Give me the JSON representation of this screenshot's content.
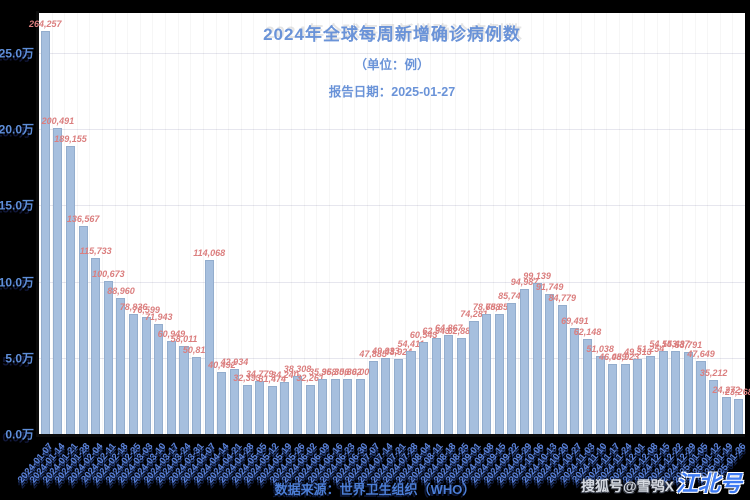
{
  "header": {
    "title": "2024年全球每周新增确诊病例数",
    "subtitle": "（单位：例）",
    "report_date_line": "报告日期：2025-01-27"
  },
  "chart_data": {
    "type": "bar",
    "title": "2024年全球每周新增确诊病例数",
    "subtitle": "（单位：例）",
    "xlabel": "",
    "ylabel": "",
    "ylim": [
      0,
      276250
    ],
    "grid": true,
    "legend_position": "none",
    "yticks": [
      {
        "label": "0.0万",
        "value": 0
      },
      {
        "label": "5.0万",
        "value": 50000
      },
      {
        "label": "10.0万",
        "value": 100000
      },
      {
        "label": "15.0万",
        "value": 150000
      },
      {
        "label": "20.0万",
        "value": 200000
      },
      {
        "label": "25.0万",
        "value": 250000
      }
    ],
    "x": [
      "2024-01-07",
      "2024-01-14",
      "2024-01-21",
      "2024-01-28",
      "2024-02-04",
      "2024-02-11",
      "2024-02-18",
      "2024-02-25",
      "2024-03-03",
      "2024-03-10",
      "2024-03-17",
      "2024-03-24",
      "2024-03-31",
      "2024-04-07",
      "2024-04-14",
      "2024-04-21",
      "2024-04-28",
      "2024-05-05",
      "2024-05-12",
      "2024-05-19",
      "2024-05-26",
      "2024-06-02",
      "2024-06-09",
      "2024-06-16",
      "2024-06-23",
      "2024-06-30",
      "2024-07-07",
      "2024-07-14",
      "2024-07-21",
      "2024-07-28",
      "2024-08-04",
      "2024-08-11",
      "2024-08-18",
      "2024-08-25",
      "2024-09-01",
      "2024-09-08",
      "2024-09-15",
      "2024-09-22",
      "2024-09-29",
      "2024-10-06",
      "2024-10-13",
      "2024-10-20",
      "2024-10-27",
      "2024-11-03",
      "2024-11-10",
      "2024-11-17",
      "2024-11-24",
      "2024-12-01",
      "2024-12-08",
      "2024-12-15",
      "2024-12-22",
      "2024-12-29",
      "2025-01-05",
      "2025-01-12",
      "2025-01-19",
      "2025-01-26"
    ],
    "values": [
      264257,
      200491,
      189155,
      136567,
      115733,
      100673,
      88960,
      78836,
      76599,
      71943,
      60949,
      58011,
      50818,
      114068,
      40492,
      42934,
      32393,
      34779,
      31474,
      34240,
      38308,
      32261,
      35958,
      36306,
      35802,
      36002,
      47885,
      49933,
      48924,
      54411,
      60543,
      62943,
      64867,
      62889,
      74281,
      78658,
      78858,
      85748,
      94987,
      99139,
      91749,
      84779,
      69491,
      62148,
      51038,
      46089,
      45923,
      49313,
      51254,
      54153,
      54487,
      53791,
      47649,
      35212,
      24272,
      23268
    ],
    "bar_color": "#a6bfde",
    "value_label_color": "#db7e7e",
    "tick_label_color": "#5e8ed8",
    "axis_color": "#0b0b0b"
  },
  "footer": {
    "source": "数据来源：世界卫生组织（WHO）",
    "watermark_handle": "搜狐号@雪鸮X",
    "watermark_brand": "江北号"
  }
}
